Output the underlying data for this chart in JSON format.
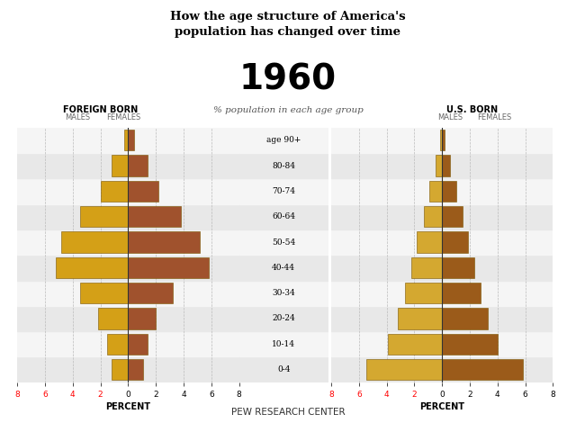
{
  "title_main": "How the age structure of America's\npopulation has changed over time",
  "title_year": "1960",
  "subtitle": "% population in each age group",
  "age_labels": [
    "age 90+",
    "80-84",
    "70-74",
    "60-64",
    "50-54",
    "40-44",
    "30-34",
    "20-24",
    "10-14",
    "0-4"
  ],
  "foreign_male": [
    0.3,
    1.2,
    2.0,
    3.5,
    4.8,
    5.2,
    3.5,
    2.2,
    1.5,
    1.2
  ],
  "foreign_female": [
    0.4,
    1.4,
    2.2,
    3.8,
    5.2,
    5.8,
    3.2,
    2.0,
    1.4,
    1.1
  ],
  "us_male": [
    0.15,
    0.5,
    0.9,
    1.3,
    1.8,
    2.2,
    2.7,
    3.2,
    3.9,
    5.5
  ],
  "us_female": [
    0.15,
    0.6,
    1.0,
    1.5,
    1.9,
    2.3,
    2.8,
    3.3,
    4.0,
    5.8
  ],
  "male_color_foreign": "#D4A017",
  "female_color_foreign": "#A0522D",
  "male_color_us": "#D4A830",
  "female_color_us": "#9B5B1A",
  "bar_edgecolor": "#7a5500",
  "bg_color": "#f0f0f0",
  "stripe_color": "#e0e0e0",
  "xlabel": "PERCENT",
  "xlim": 8,
  "footer": "PEW RESEARCH CENTER",
  "label_foreign_born": "FOREIGN BORN",
  "label_us_born": "U.S. BORN",
  "label_males": "MALES",
  "label_females": "FEMALES"
}
